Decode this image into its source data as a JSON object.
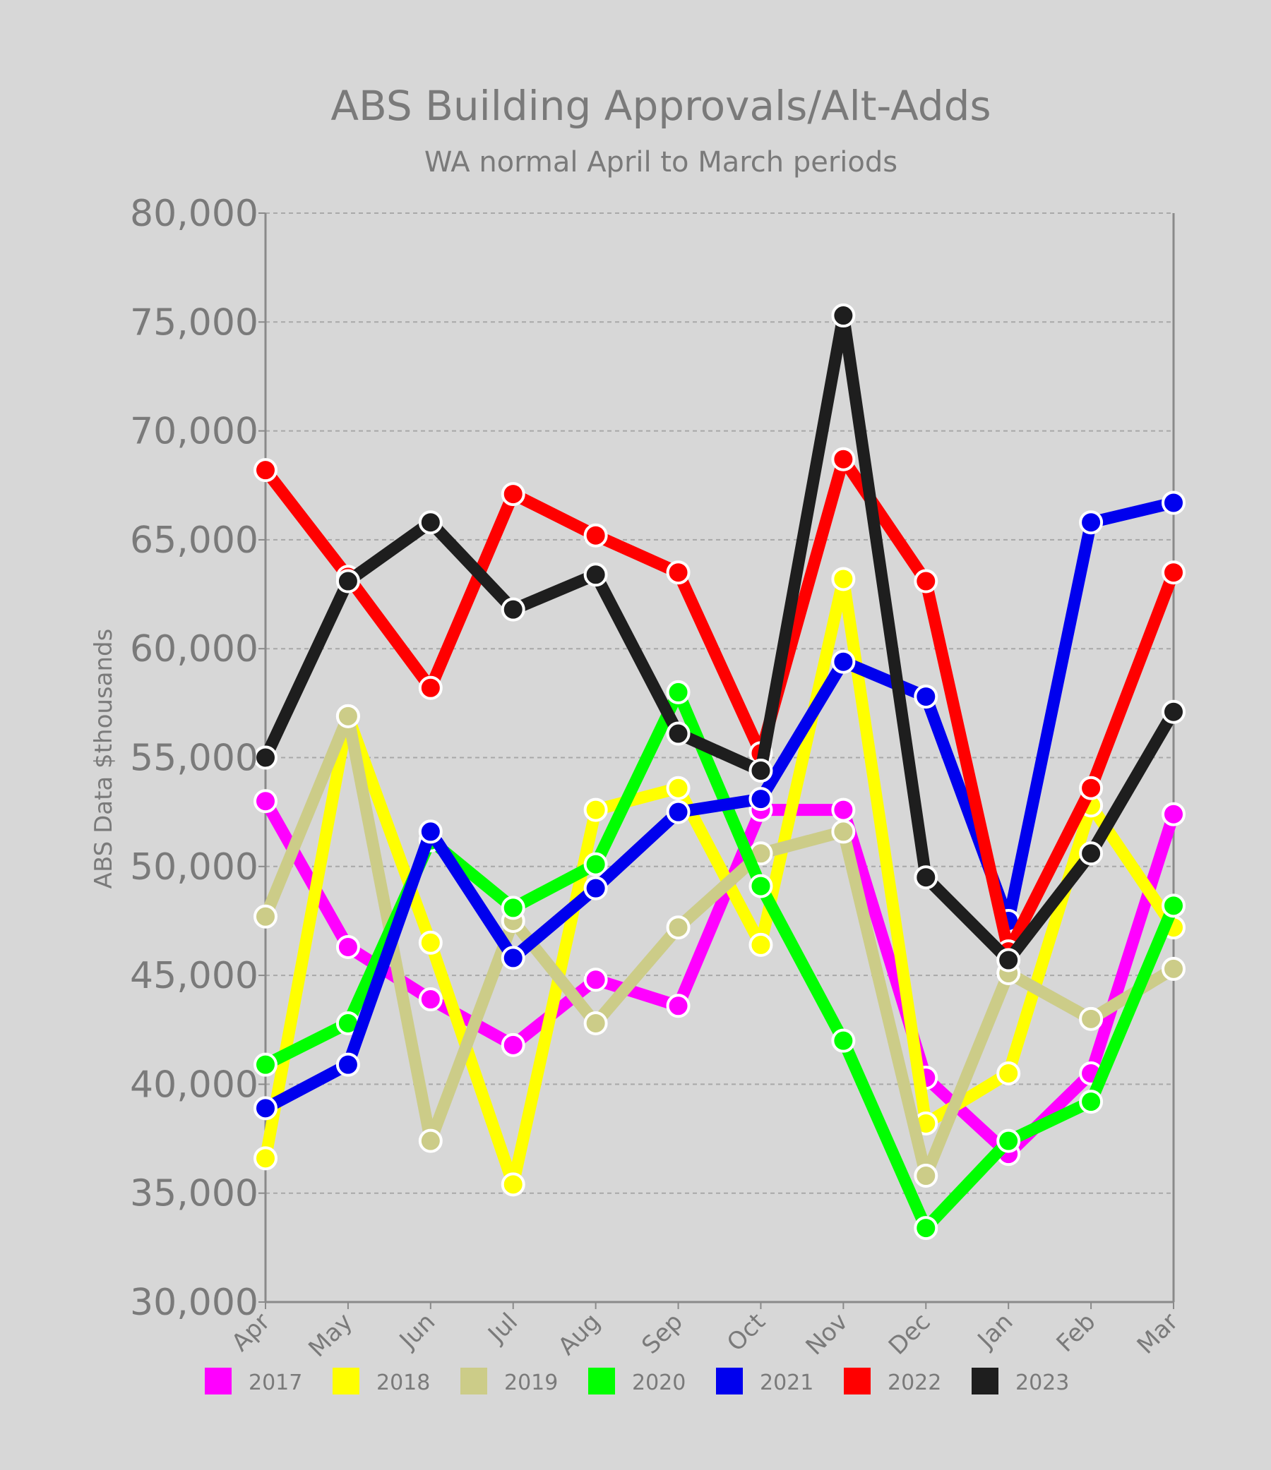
{
  "chart_data": {
    "type": "line",
    "title": "ABS Building Approvals/Alt-Adds",
    "subtitle": "WA normal April to March periods",
    "ylabel": "ABS Data $thousands",
    "xlabel": "",
    "categories": [
      "Apr",
      "May",
      "Jun",
      "Jul",
      "Aug",
      "Sep",
      "Oct",
      "Nov",
      "Dec",
      "Jan",
      "Feb",
      "Mar"
    ],
    "ylim": [
      30000,
      80000
    ],
    "yticks": [
      "30,000",
      "35,000",
      "40,000",
      "45,000",
      "50,000",
      "55,000",
      "60,000",
      "65,000",
      "70,000",
      "75,000",
      "80,000"
    ],
    "grid": "horizontal dashed",
    "legend_position": "bottom",
    "series": [
      {
        "name": "2017",
        "color": "#ff00ff",
        "values": [
          53000,
          46300,
          43900,
          41800,
          44800,
          43600,
          52600,
          52600,
          40300,
          36800,
          40500,
          52400
        ]
      },
      {
        "name": "2018",
        "color": "#ffff00",
        "values": [
          36600,
          56900,
          46500,
          35400,
          52600,
          53600,
          46400,
          63200,
          38200,
          40500,
          52800,
          47200
        ]
      },
      {
        "name": "2019",
        "color": "#cccc88",
        "values": [
          47700,
          56900,
          37400,
          47500,
          42800,
          47200,
          50600,
          51600,
          35800,
          45100,
          43000,
          45300
        ]
      },
      {
        "name": "2020",
        "color": "#00ff00",
        "values": [
          40900,
          42800,
          51200,
          48100,
          50100,
          58000,
          49100,
          42000,
          33400,
          37400,
          39200,
          48200
        ]
      },
      {
        "name": "2021",
        "color": "#0000ee",
        "values": [
          38900,
          40900,
          51600,
          45800,
          49000,
          52500,
          53100,
          59400,
          57800,
          47500,
          65800,
          66700
        ]
      },
      {
        "name": "2022",
        "color": "#ff0000",
        "values": [
          68200,
          63300,
          58200,
          67100,
          65200,
          63500,
          55200,
          68700,
          63100,
          46100,
          53600,
          63500
        ]
      },
      {
        "name": "2023",
        "color": "#1e1e1e",
        "values": [
          55000,
          63100,
          65800,
          61800,
          63400,
          56100,
          54400,
          75300,
          49500,
          45700,
          50600,
          57100
        ]
      }
    ]
  }
}
